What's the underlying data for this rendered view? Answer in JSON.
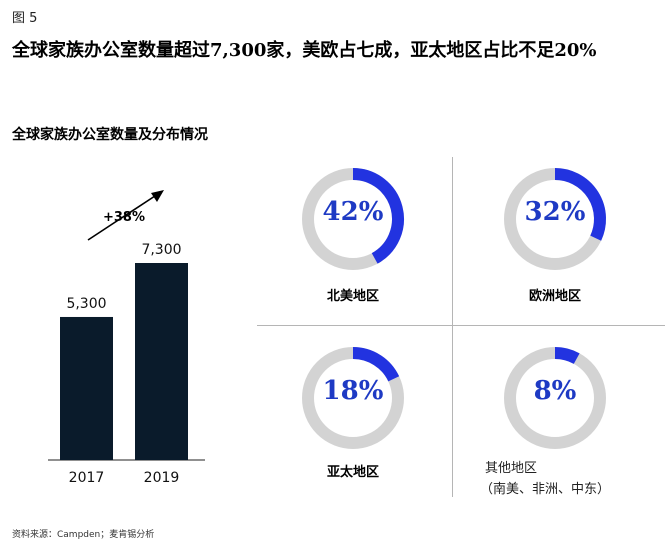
{
  "figure_label": "图 5",
  "headline": "全球家族办公室数量超过7,300家，美欧占七成，亚太地区占比不足20%",
  "subtitle": "全球家族办公室数量及分布情况",
  "chart_data": [
    {
      "type": "bar",
      "categories": [
        "2017",
        "2019"
      ],
      "values": [
        5300,
        7300
      ],
      "value_labels": [
        "5,300",
        "7,300"
      ],
      "annotation": "+38%",
      "ylim": [
        0,
        7300
      ],
      "color": "#0a1b2b"
    },
    {
      "type": "pie",
      "style": "donut",
      "slices": [
        {
          "label": "北美地区",
          "value": 42,
          "display": "42%"
        },
        {
          "label": "欧洲地区",
          "value": 32,
          "display": "32%"
        },
        {
          "label": "亚太地区",
          "value": 18,
          "display": "18%"
        },
        {
          "label": "其他地区",
          "sublabel": "（南美、非洲、中东）",
          "value": 8,
          "display": "8%"
        }
      ],
      "accent_color": "#2233e0",
      "track_color": "#d3d3d3"
    }
  ],
  "source": "资料来源：Campden；麦肯锡分析"
}
